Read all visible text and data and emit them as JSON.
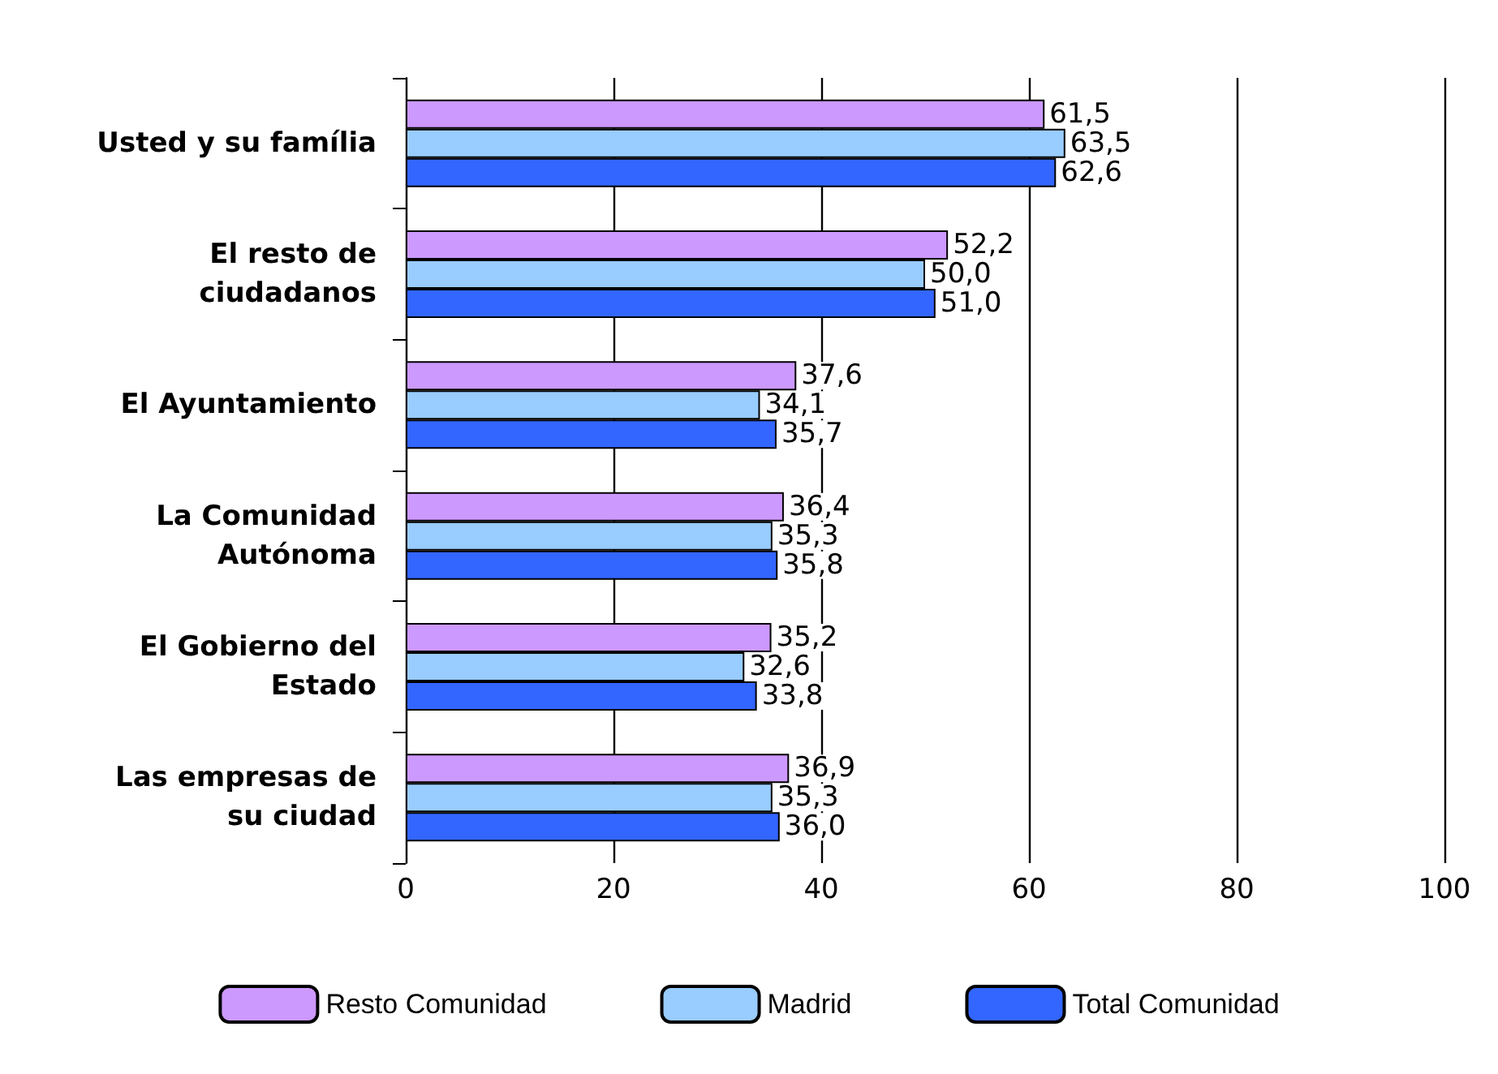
{
  "chart_data": {
    "type": "bar",
    "orientation": "horizontal",
    "categories": [
      "Usted y su família",
      "El resto de\nciudadanos",
      "El Ayuntamiento",
      "La Comunidad\nAutónoma",
      "El Gobierno del\nEstado",
      "Las empresas de\nsu ciudad"
    ],
    "series": [
      {
        "name": "Resto Comunidad",
        "color": "#cc99ff",
        "values": [
          61.5,
          52.2,
          37.6,
          36.4,
          35.2,
          36.9
        ],
        "value_labels": [
          "61,5",
          "52,2",
          "37,6",
          "36,4",
          "35,2",
          "36,9"
        ]
      },
      {
        "name": "Madrid",
        "color": "#99ccff",
        "values": [
          63.5,
          50.0,
          34.1,
          35.3,
          32.6,
          35.3
        ],
        "value_labels": [
          "63,5",
          "50,0",
          "34,1",
          "35,3",
          "32,6",
          "35,3"
        ]
      },
      {
        "name": "Total Comunidad",
        "color": "#3366ff",
        "values": [
          62.6,
          51.0,
          35.7,
          35.8,
          33.8,
          36.0
        ],
        "value_labels": [
          "62,6",
          "51,0",
          "35,7",
          "35,8",
          "33,8",
          "36,0"
        ]
      }
    ],
    "xlim": [
      0,
      100
    ],
    "xticks": [
      0,
      20,
      40,
      60,
      80,
      100
    ],
    "grid": "x",
    "legend": "bottom"
  }
}
